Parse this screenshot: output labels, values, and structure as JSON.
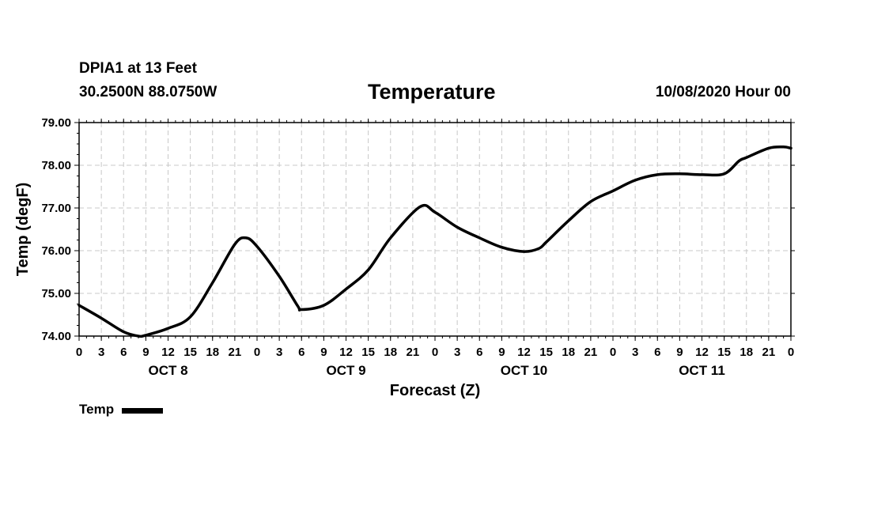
{
  "header": {
    "station": "DPIA1 at 13 Feet",
    "coords": "30.2500N 88.0750W",
    "title": "Temperature",
    "date": "10/08/2020 Hour 00"
  },
  "legend": {
    "label": "Temp",
    "color": "#000000"
  },
  "chart_data": {
    "type": "line",
    "title": "Temperature",
    "xlabel": "Forecast (Z)",
    "ylabel": "Temp (degF)",
    "ylim": [
      74.0,
      79.0
    ],
    "yticks": [
      "74.00",
      "75.00",
      "76.00",
      "77.00",
      "78.00",
      "79.00"
    ],
    "xlim": [
      0,
      96
    ],
    "xticks": [
      "0",
      "3",
      "6",
      "9",
      "12",
      "15",
      "18",
      "21",
      "0",
      "3",
      "6",
      "9",
      "12",
      "15",
      "18",
      "21",
      "0",
      "3",
      "6",
      "9",
      "12",
      "15",
      "18",
      "21",
      "0",
      "3",
      "6",
      "9",
      "12",
      "15",
      "18",
      "21",
      "0"
    ],
    "day_labels": [
      {
        "label": "OCT 8",
        "hour": 12
      },
      {
        "label": "OCT 9",
        "hour": 36
      },
      {
        "label": "OCT 10",
        "hour": 60
      },
      {
        "label": "OCT 11",
        "hour": 84
      }
    ],
    "grid": true,
    "series": [
      {
        "name": "Temp",
        "color": "#000000",
        "x": [
          0,
          3,
          6,
          8,
          9,
          12,
          15,
          18,
          21,
          22.5,
          24,
          27,
          29.5,
          30,
          33,
          36,
          39,
          42,
          46,
          48,
          51,
          54,
          57,
          60,
          62,
          63,
          66,
          69,
          72,
          75,
          78,
          81,
          84,
          87,
          89,
          90,
          93,
          95,
          96
        ],
        "y": [
          74.72,
          74.42,
          74.1,
          74.0,
          74.02,
          74.18,
          74.45,
          75.25,
          76.15,
          76.3,
          76.1,
          75.4,
          74.7,
          74.62,
          74.72,
          75.1,
          75.55,
          76.3,
          77.03,
          76.9,
          76.55,
          76.3,
          76.08,
          75.98,
          76.05,
          76.2,
          76.7,
          77.15,
          77.4,
          77.65,
          77.78,
          77.8,
          77.78,
          77.8,
          78.1,
          78.18,
          78.4,
          78.43,
          78.4
        ]
      }
    ]
  }
}
